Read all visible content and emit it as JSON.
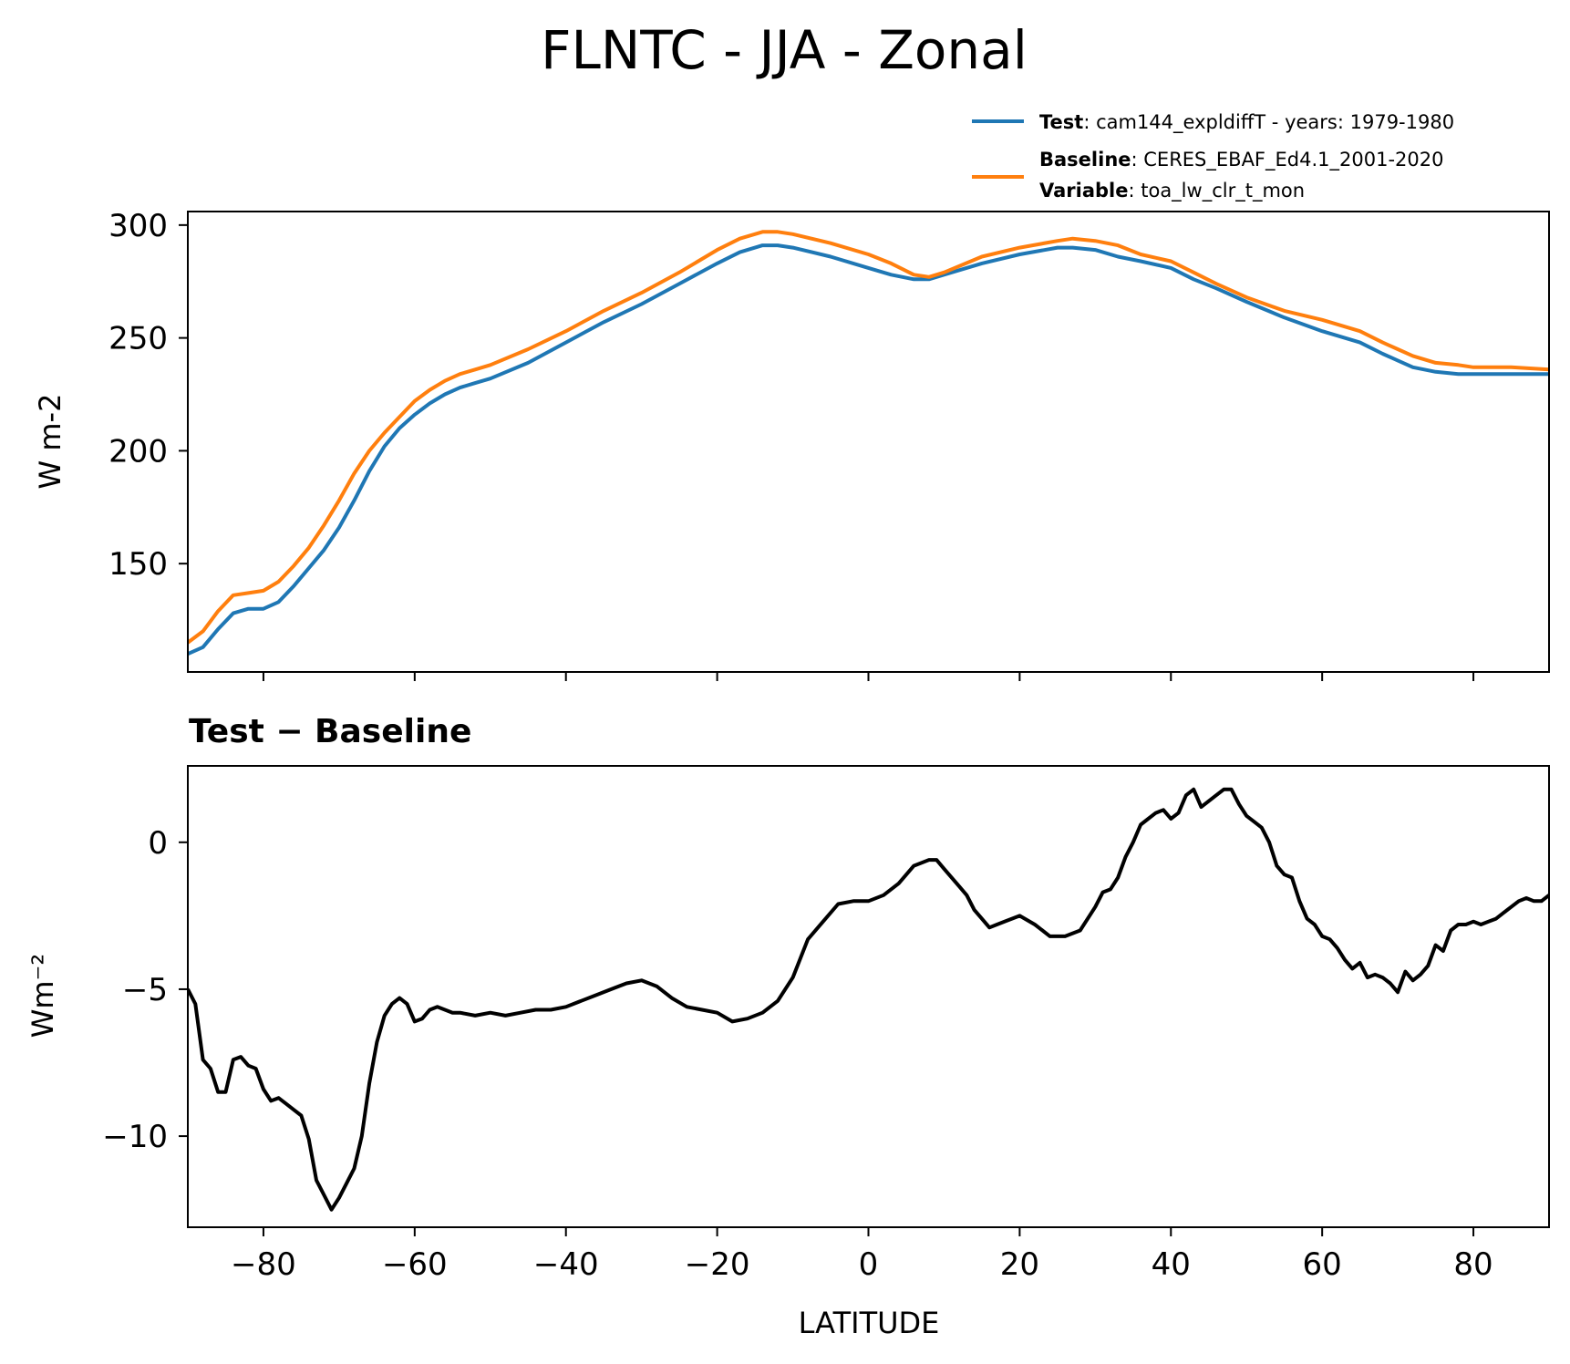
{
  "title": "FLNTC - JJA - Zonal",
  "legend": {
    "test_key": "Test",
    "test_text": ": cam144_expldiffT - years: 1979-1980",
    "baseline_key": "Baseline",
    "baseline_text": ": CERES_EBAF_Ed4.1_2001-2020",
    "variable_key": "Variable",
    "variable_text": ": toa_lw_clr_t_mon"
  },
  "chart_data": [
    {
      "type": "line",
      "ylabel": "W m-2",
      "xlim": [
        -90,
        90
      ],
      "ylim": [
        102,
        306
      ],
      "yticks": [
        150,
        200,
        250,
        300
      ],
      "ytick_labels": [
        "150",
        "200",
        "250",
        "300"
      ],
      "xticks": [
        -80,
        -60,
        -40,
        -20,
        0,
        20,
        40,
        60,
        80
      ],
      "legend_position": "above plot, right",
      "series": [
        {
          "name": "Test",
          "color": "#1f77b4",
          "x": [
            -90,
            -88,
            -86,
            -84,
            -82,
            -80,
            -78,
            -76,
            -74,
            -72,
            -70,
            -68,
            -66,
            -64,
            -62,
            -60,
            -58,
            -56,
            -54,
            -52,
            -50,
            -45,
            -40,
            -35,
            -30,
            -25,
            -20,
            -17,
            -14,
            -12,
            -10,
            -5,
            0,
            3,
            6,
            8,
            10,
            15,
            20,
            25,
            27,
            30,
            33,
            36,
            40,
            43,
            46,
            50,
            55,
            60,
            65,
            68,
            70,
            72,
            75,
            78,
            80,
            85,
            90
          ],
          "y": [
            110,
            113,
            121,
            128,
            130,
            130,
            133,
            140,
            148,
            156,
            166,
            178,
            191,
            202,
            210,
            216,
            221,
            225,
            228,
            230,
            232,
            239,
            248,
            257,
            265,
            274,
            283,
            288,
            291,
            291,
            290,
            286,
            281,
            278,
            276,
            276,
            278,
            283,
            287,
            290,
            290,
            289,
            286,
            284,
            281,
            276,
            272,
            266,
            259,
            253,
            248,
            243,
            240,
            237,
            235,
            234,
            234,
            234,
            234
          ]
        },
        {
          "name": "Baseline",
          "color": "#ff7f0e",
          "x": [
            -90,
            -88,
            -86,
            -84,
            -82,
            -80,
            -78,
            -76,
            -74,
            -72,
            -70,
            -68,
            -66,
            -64,
            -62,
            -60,
            -58,
            -56,
            -54,
            -52,
            -50,
            -45,
            -40,
            -35,
            -30,
            -25,
            -20,
            -17,
            -14,
            -12,
            -10,
            -5,
            0,
            3,
            6,
            8,
            10,
            15,
            20,
            25,
            27,
            30,
            33,
            36,
            40,
            43,
            46,
            50,
            55,
            60,
            65,
            68,
            70,
            72,
            75,
            78,
            80,
            85,
            90
          ],
          "y": [
            115,
            120,
            129,
            136,
            137,
            138,
            142,
            149,
            157,
            167,
            178,
            190,
            200,
            208,
            215,
            222,
            227,
            231,
            234,
            236,
            238,
            245,
            253,
            262,
            270,
            279,
            289,
            294,
            297,
            297,
            296,
            292,
            287,
            283,
            278,
            277,
            279,
            286,
            290,
            293,
            294,
            293,
            291,
            287,
            284,
            279,
            274,
            268,
            262,
            258,
            253,
            248,
            245,
            242,
            239,
            238,
            237,
            237,
            236
          ]
        }
      ]
    },
    {
      "type": "line",
      "title": "Test − Baseline",
      "ylabel": "Wm⁻²",
      "xlabel": "LATITUDE",
      "xlim": [
        -90,
        90
      ],
      "ylim": [
        -13.1,
        2.6
      ],
      "yticks": [
        0,
        -5,
        -10
      ],
      "ytick_labels": [
        "0",
        "−5",
        "−10"
      ],
      "xticks": [
        -80,
        -60,
        -40,
        -20,
        0,
        20,
        40,
        60,
        80
      ],
      "xtick_labels": [
        "−80",
        "−60",
        "−40",
        "−20",
        "0",
        "20",
        "40",
        "60",
        "80"
      ],
      "series": [
        {
          "name": "Test − Baseline",
          "color": "#000000",
          "x": [
            -90,
            -89,
            -88,
            -87,
            -86,
            -85,
            -84,
            -83,
            -82,
            -81,
            -80,
            -79,
            -78,
            -77,
            -76,
            -75,
            -74,
            -73,
            -72,
            -71,
            -70,
            -69,
            -68,
            -67,
            -66,
            -65,
            -64,
            -63,
            -62,
            -61,
            -60,
            -59,
            -58,
            -57,
            -56,
            -55,
            -54,
            -52,
            -50,
            -48,
            -46,
            -44,
            -42,
            -40,
            -38,
            -36,
            -34,
            -32,
            -30,
            -28,
            -26,
            -24,
            -22,
            -20,
            -18,
            -16,
            -14,
            -12,
            -10,
            -8,
            -6,
            -4,
            -2,
            0,
            2,
            4,
            6,
            8,
            9,
            10,
            12,
            13,
            14,
            15,
            16,
            17,
            18,
            20,
            22,
            24,
            26,
            28,
            30,
            31,
            32,
            33,
            34,
            35,
            36,
            37,
            38,
            39,
            40,
            41,
            42,
            43,
            44,
            46,
            47,
            48,
            49,
            50,
            51,
            52,
            53,
            54,
            55,
            56,
            57,
            58,
            59,
            60,
            61,
            62,
            63,
            64,
            65,
            66,
            67,
            68,
            69,
            70,
            71,
            72,
            73,
            74,
            75,
            76,
            77,
            78,
            79,
            80,
            81,
            82,
            83,
            84,
            85,
            86,
            87,
            88,
            89,
            90
          ],
          "y": [
            -5.0,
            -5.5,
            -7.4,
            -7.7,
            -8.5,
            -8.5,
            -7.4,
            -7.3,
            -7.6,
            -7.7,
            -8.4,
            -8.8,
            -8.7,
            -8.9,
            -9.1,
            -9.3,
            -10.1,
            -11.5,
            -12.0,
            -12.5,
            -12.1,
            -11.6,
            -11.1,
            -10.0,
            -8.2,
            -6.8,
            -5.9,
            -5.5,
            -5.3,
            -5.5,
            -6.1,
            -6.0,
            -5.7,
            -5.6,
            -5.7,
            -5.8,
            -5.8,
            -5.9,
            -5.8,
            -5.9,
            -5.8,
            -5.7,
            -5.7,
            -5.6,
            -5.4,
            -5.2,
            -5.0,
            -4.8,
            -4.7,
            -4.9,
            -5.3,
            -5.6,
            -5.7,
            -5.8,
            -6.1,
            -6.0,
            -5.8,
            -5.4,
            -4.6,
            -3.3,
            -2.7,
            -2.1,
            -2.0,
            -2.0,
            -1.8,
            -1.4,
            -0.8,
            -0.6,
            -0.6,
            -0.9,
            -1.5,
            -1.8,
            -2.3,
            -2.6,
            -2.9,
            -2.8,
            -2.7,
            -2.5,
            -2.8,
            -3.2,
            -3.2,
            -3.0,
            -2.2,
            -1.7,
            -1.6,
            -1.2,
            -0.5,
            0.0,
            0.6,
            0.8,
            1.0,
            1.1,
            0.8,
            1.0,
            1.6,
            1.8,
            1.2,
            1.6,
            1.8,
            1.8,
            1.3,
            0.9,
            0.7,
            0.5,
            0.0,
            -0.8,
            -1.1,
            -1.2,
            -2.0,
            -2.6,
            -2.8,
            -3.2,
            -3.3,
            -3.6,
            -4.0,
            -4.3,
            -4.1,
            -4.6,
            -4.5,
            -4.6,
            -4.8,
            -5.1,
            -4.4,
            -4.7,
            -4.5,
            -4.2,
            -3.5,
            -3.7,
            -3.0,
            -2.8,
            -2.8,
            -2.7,
            -2.8,
            -2.7,
            -2.6,
            -2.4,
            -2.2,
            -2.0,
            -1.9,
            -2.0,
            -2.0,
            -1.8
          ]
        }
      ]
    }
  ]
}
